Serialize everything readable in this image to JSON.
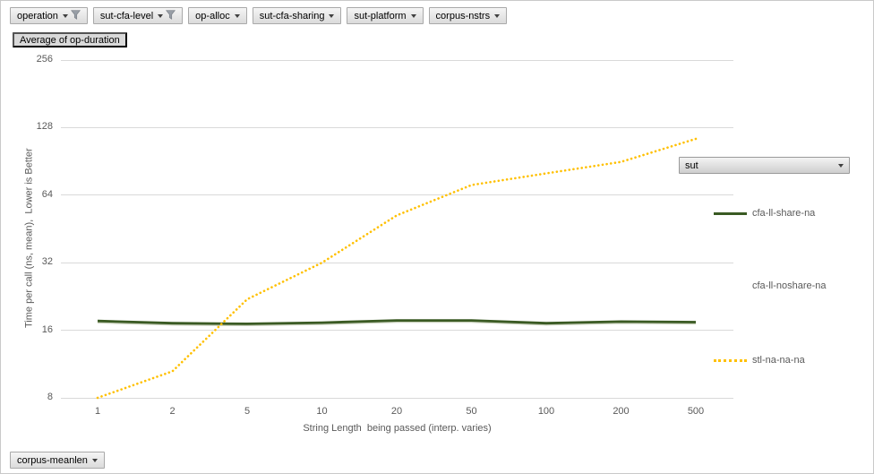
{
  "filters": {
    "top": [
      {
        "label": "operation",
        "filtered": true
      },
      {
        "label": "sut-cfa-level",
        "filtered": true
      },
      {
        "label": "op-alloc",
        "filtered": false
      },
      {
        "label": "sut-cfa-sharing",
        "filtered": false
      },
      {
        "label": "sut-platform",
        "filtered": false
      },
      {
        "label": "corpus-nstrs",
        "filtered": false
      }
    ],
    "values_button": "Average of op-duration",
    "bottom_button": "corpus-meanlen",
    "legend_field": "sut"
  },
  "chart_data": {
    "type": "line",
    "title": "",
    "xlabel": "String Length  being passed (interp. varies)",
    "ylabel": "Time per call (ns, mean),  Lower is Better",
    "categories": [
      "1",
      "2",
      "5",
      "10",
      "20",
      "50",
      "100",
      "200",
      "500"
    ],
    "y_scale": "log2",
    "yticks": [
      256,
      128,
      64,
      32,
      16,
      8
    ],
    "ylim": [
      8,
      256
    ],
    "grid": true,
    "legend_position": "right",
    "series": [
      {
        "name": "cfa-ll-share-na",
        "style": "solid",
        "color": "#3a5a23",
        "values": [
          17.6,
          17.2,
          17.1,
          17.3,
          17.7,
          17.7,
          17.2,
          17.5,
          17.4
        ]
      },
      {
        "name": "cfa-ll-noshare-na",
        "style": "solid",
        "color": "#c7cfba",
        "values": [
          17.4,
          17.0,
          16.9,
          17.1,
          17.5,
          17.5,
          17.0,
          17.3,
          17.2
        ]
      },
      {
        "name": "stl-na-na-na",
        "style": "dotted",
        "color": "#ffc000",
        "values": [
          8,
          10.5,
          22,
          32,
          52,
          71,
          80,
          90,
          114
        ]
      }
    ]
  },
  "colors": {
    "gridline": "#d9d9d9",
    "axis_text": "#595959",
    "button_border": "#a9a9a9"
  }
}
